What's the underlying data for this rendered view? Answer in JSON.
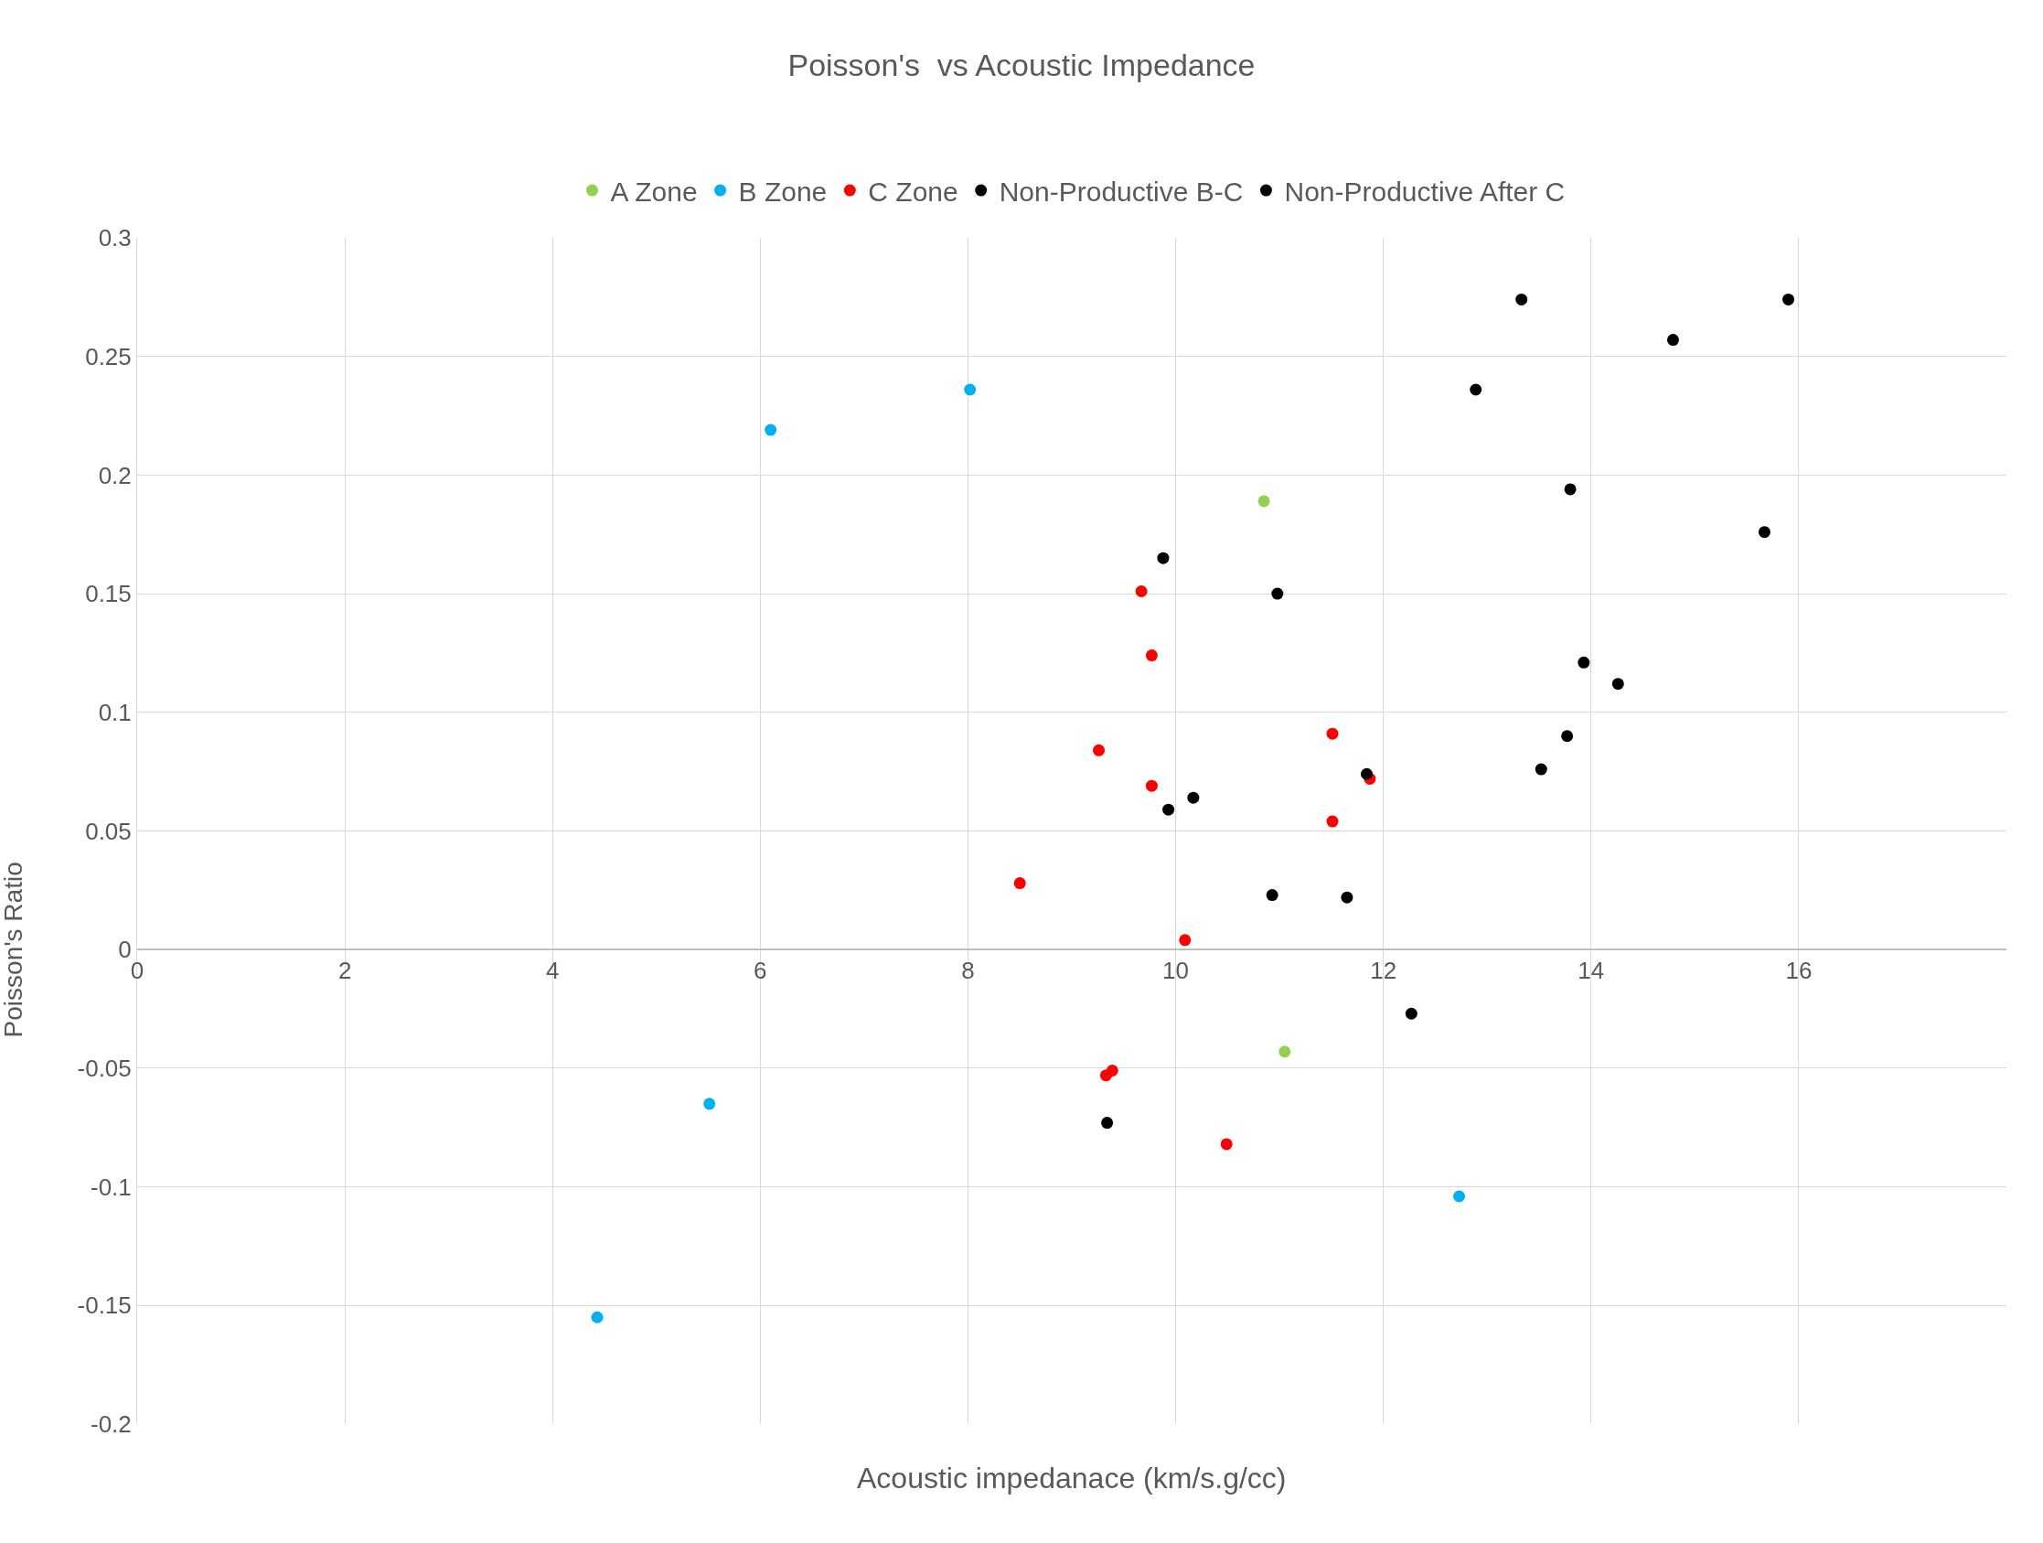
{
  "chart_data": {
    "type": "scatter",
    "title": "Poisson's  vs Acoustic Impedance",
    "xlabel": "Acoustic impedanace (km/s.g/cc)",
    "ylabel": "Poisson's Ratio",
    "xlim": [
      0,
      18
    ],
    "xticks": [
      0,
      2,
      4,
      6,
      8,
      10,
      12,
      14,
      16
    ],
    "ylim": [
      -0.2,
      0.3
    ],
    "yticks": [
      -0.2,
      -0.15,
      -0.1,
      -0.05,
      0,
      0.05,
      0.1,
      0.15,
      0.2,
      0.25,
      0.3
    ],
    "grid": true,
    "legend": "top",
    "marker": "circle",
    "series": [
      {
        "name": "A Zone",
        "color": "#92d050",
        "x": [
          10.85,
          11.05
        ],
        "values": [
          0.189,
          -0.043
        ]
      },
      {
        "name": "B Zone",
        "color": "#00b0f0",
        "x": [
          6.1,
          8.02,
          5.51,
          4.43,
          12.73
        ],
        "values": [
          0.219,
          0.236,
          -0.065,
          -0.155,
          -0.104
        ]
      },
      {
        "name": "C Zone",
        "color": "#ff0000",
        "x": [
          9.67,
          9.77,
          9.26,
          9.77,
          8.5,
          10.09,
          11.51,
          11.87,
          11.51,
          9.39,
          9.33,
          10.49
        ],
        "values": [
          0.151,
          0.124,
          0.084,
          0.069,
          0.028,
          0.004,
          0.091,
          0.072,
          0.054,
          -0.051,
          -0.053,
          -0.082
        ]
      },
      {
        "name": "Non-Productive B-C",
        "color": "#000000",
        "x": [
          9.88,
          10.98,
          10.17,
          9.93,
          11.84,
          10.93,
          11.65,
          12.27,
          9.34
        ],
        "values": [
          0.165,
          0.15,
          0.064,
          0.059,
          0.074,
          0.023,
          0.022,
          -0.027,
          -0.073
        ]
      },
      {
        "name": "Non-Productive After C",
        "color": "#000000",
        "x": [
          13.33,
          14.79,
          15.9,
          12.89,
          13.8,
          15.67,
          13.93,
          14.26,
          13.77,
          13.52
        ],
        "values": [
          0.274,
          0.257,
          0.274,
          0.236,
          0.194,
          0.176,
          0.121,
          0.112,
          0.09,
          0.076
        ]
      }
    ]
  }
}
